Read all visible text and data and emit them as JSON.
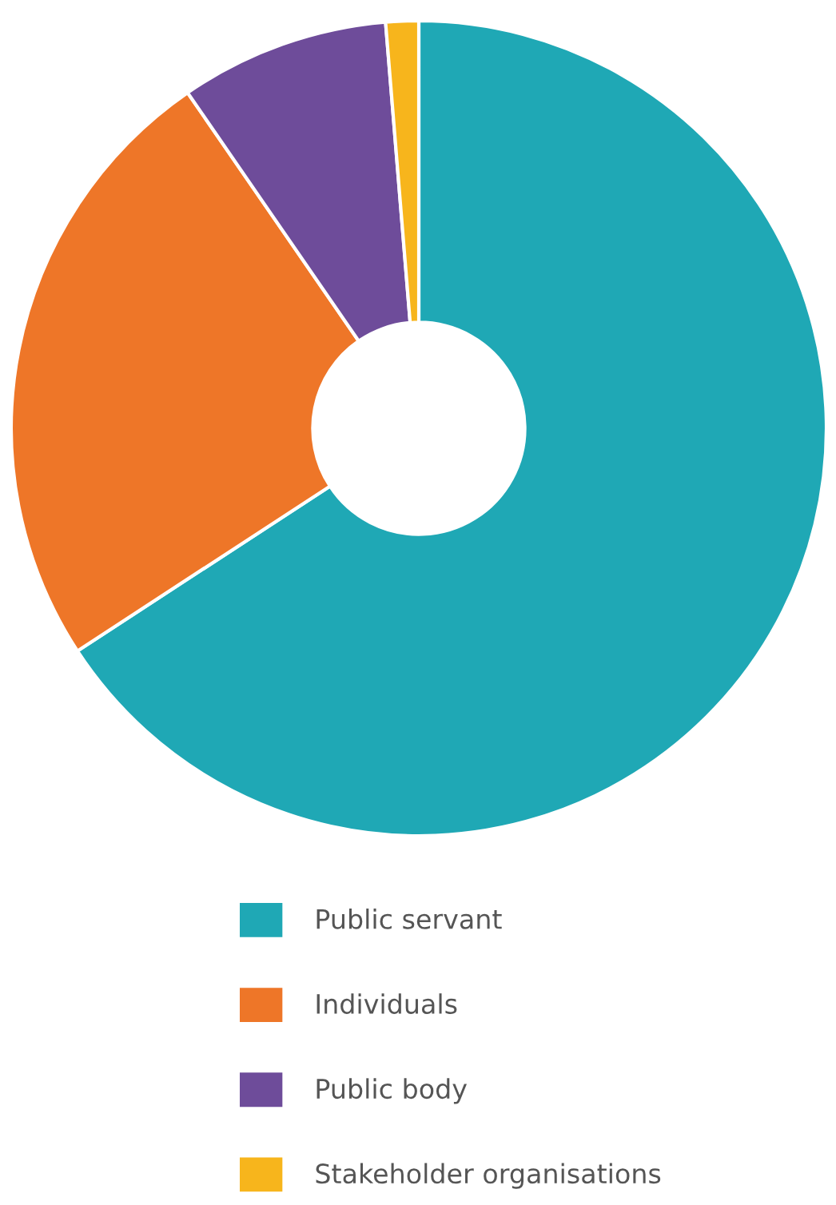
{
  "chart_data": {
    "type": "donut",
    "categories": [
      "Public servant",
      "Individuals",
      "Public body",
      "Stakeholder organisations"
    ],
    "values": [
      65.8,
      24.6,
      8.3,
      1.3
    ],
    "colors": [
      "#1fa8b5",
      "#ee7628",
      "#6e4c9a",
      "#f7b51c"
    ],
    "legend": "bottom"
  }
}
